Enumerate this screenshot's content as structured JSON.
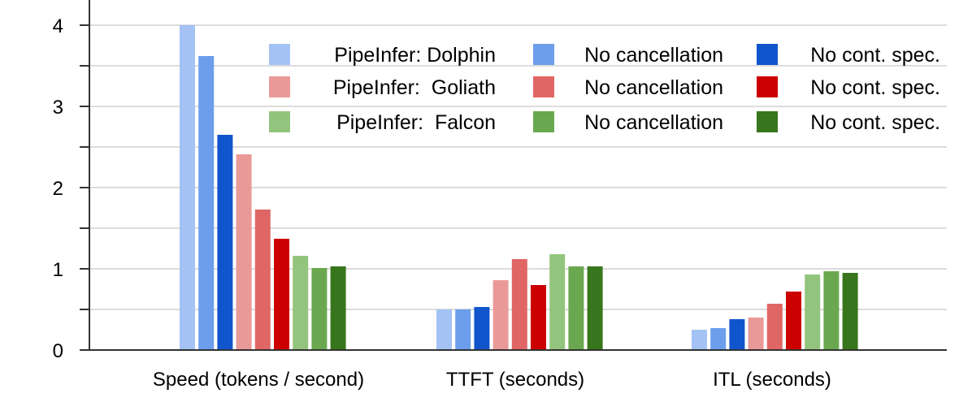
{
  "chart_data": {
    "type": "bar",
    "title": "",
    "xlabel": "",
    "ylabel": "",
    "ylim": [
      0,
      4
    ],
    "yticks": [
      "0",
      "1",
      "2",
      "3",
      "4"
    ],
    "grid": true,
    "legend_position": "top-right",
    "categories": [
      "Speed (tokens / second)",
      "TTFT (seconds)",
      "ITL (seconds)"
    ],
    "series": [
      {
        "name": "PipeInfer: Dolphin",
        "color": "#a4c2f4",
        "values": [
          4.0,
          0.5,
          0.25
        ]
      },
      {
        "name": "No cancellation",
        "color": "#6d9eeb",
        "values": [
          3.62,
          0.5,
          0.27
        ]
      },
      {
        "name": "No cont. spec.",
        "color": "#1155cc",
        "values": [
          2.65,
          0.53,
          0.38
        ]
      },
      {
        "name": "PipeInfer:  Goliath",
        "color": "#ea9999",
        "values": [
          2.41,
          0.86,
          0.4
        ]
      },
      {
        "name": "No cancellation",
        "color": "#e06666",
        "values": [
          1.73,
          1.12,
          0.57
        ]
      },
      {
        "name": "No cont. spec.",
        "color": "#cc0000",
        "values": [
          1.37,
          0.8,
          0.72
        ]
      },
      {
        "name": "PipeInfer:  Falcon",
        "color": "#93c47d",
        "values": [
          1.16,
          1.18,
          0.93
        ]
      },
      {
        "name": "No cancellation",
        "color": "#6aa84f",
        "values": [
          1.01,
          1.03,
          0.97
        ]
      },
      {
        "name": "No cont. spec.",
        "color": "#38761d",
        "values": [
          1.03,
          1.03,
          0.95
        ]
      }
    ]
  }
}
